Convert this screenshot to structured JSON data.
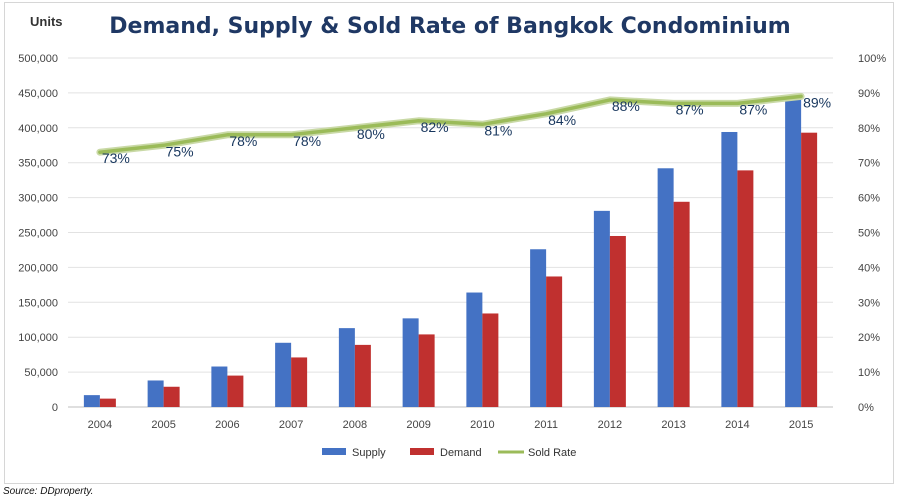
{
  "chart_data": {
    "type": "bar",
    "title": "Demand, Supply & Sold Rate of Bangkok Condominium",
    "ylabel": "Units",
    "categories": [
      "2004",
      "2005",
      "2006",
      "2007",
      "2008",
      "2009",
      "2010",
      "2011",
      "2012",
      "2013",
      "2014",
      "2015"
    ],
    "series": [
      {
        "name": "Supply",
        "type": "bar",
        "axis": "left",
        "color": "#4472c4",
        "values": [
          17000,
          38000,
          58000,
          92000,
          113000,
          127000,
          164000,
          226000,
          281000,
          342000,
          394000,
          447000
        ]
      },
      {
        "name": "Demand",
        "type": "bar",
        "axis": "left",
        "color": "#c0302f",
        "values": [
          12000,
          29000,
          45000,
          71000,
          89000,
          104000,
          134000,
          187000,
          245000,
          294000,
          339000,
          393000
        ]
      },
      {
        "name": "Sold Rate",
        "type": "line",
        "axis": "right",
        "color": "#9bbb59",
        "values": [
          73,
          75,
          78,
          78,
          80,
          82,
          81,
          84,
          88,
          87,
          87,
          89
        ],
        "labels": [
          "73%",
          "75%",
          "78%",
          "78%",
          "80%",
          "82%",
          "81%",
          "84%",
          "88%",
          "87%",
          "87%",
          "89%"
        ]
      }
    ],
    "ylim": [
      0,
      500000
    ],
    "y2lim": [
      0,
      100
    ],
    "yticks": [
      "0",
      "50,000",
      "100,000",
      "150,000",
      "200,000",
      "250,000",
      "300,000",
      "350,000",
      "400,000",
      "450,000",
      "500,000"
    ],
    "y2ticks": [
      "0%",
      "10%",
      "20%",
      "30%",
      "40%",
      "50%",
      "60%",
      "70%",
      "80%",
      "90%",
      "100%"
    ],
    "grid": true,
    "legend_position": "bottom"
  },
  "source": "Source: DDproperty."
}
